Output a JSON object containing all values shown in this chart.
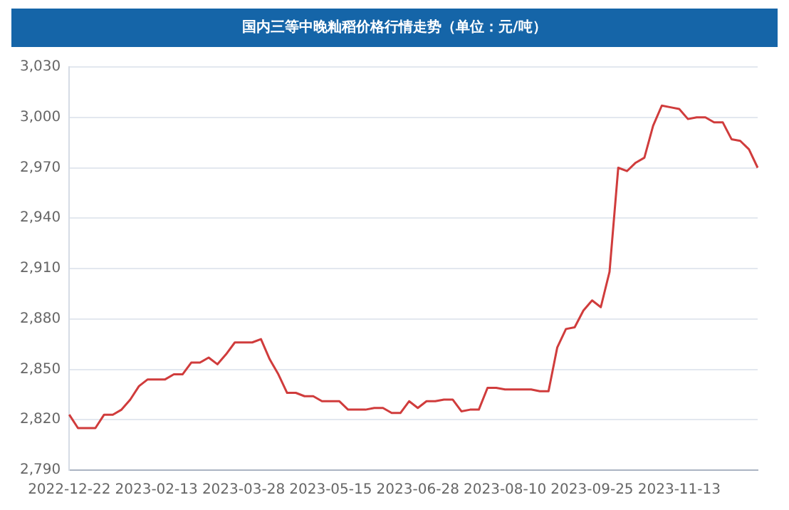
{
  "chart_data": {
    "type": "line",
    "title": "国内三等中晚籼稻价格行情走势（单位：元/吨）",
    "categories": [
      "2022-12-22",
      null,
      null,
      null,
      null,
      null,
      null,
      null,
      null,
      null,
      "2023-02-13",
      null,
      null,
      null,
      null,
      null,
      null,
      null,
      null,
      null,
      "2023-03-28",
      null,
      null,
      null,
      null,
      null,
      null,
      null,
      null,
      null,
      "2023-05-15",
      null,
      null,
      null,
      null,
      null,
      null,
      null,
      null,
      null,
      "2023-06-28",
      null,
      null,
      null,
      null,
      null,
      null,
      null,
      null,
      null,
      "2023-08-10",
      null,
      null,
      null,
      null,
      null,
      null,
      null,
      null,
      null,
      "2023-09-25",
      null,
      null,
      null,
      null,
      null,
      null,
      null,
      null,
      null,
      "2023-11-13",
      null,
      null,
      null,
      null,
      null,
      null,
      null,
      null,
      null
    ],
    "series": [
      {
        "color": "#d03c3c",
        "values": [
          2823,
          2815,
          2815,
          2815,
          2823,
          2823,
          2826,
          2832,
          2840,
          2844,
          2844,
          2844,
          2847,
          2847,
          2854,
          2854,
          2857,
          2853,
          2859,
          2866,
          2866,
          2866,
          2868,
          2856,
          2847,
          2836,
          2836,
          2834,
          2834,
          2831,
          2831,
          2831,
          2826,
          2826,
          2826,
          2827,
          2827,
          2824,
          2824,
          2831,
          2827,
          2831,
          2831,
          2832,
          2832,
          2825,
          2826,
          2826,
          2839,
          2839,
          2838,
          2838,
          2838,
          2838,
          2837,
          2837,
          2863,
          2874,
          2875,
          2885,
          2891,
          2887,
          2908,
          2970,
          2968,
          2973,
          2976,
          2995,
          3007,
          3006,
          3005,
          2999,
          3000,
          3000,
          2997,
          2997,
          2987,
          2986,
          2981,
          2970
        ]
      }
    ],
    "ylim": [
      2790,
      3030
    ],
    "yticks": [
      {
        "value": 2790,
        "label": "2,790"
      },
      {
        "value": 2820,
        "label": "2,820"
      },
      {
        "value": 2850,
        "label": "2,850"
      },
      {
        "value": 2880,
        "label": "2,880"
      },
      {
        "value": 2910,
        "label": "2,910"
      },
      {
        "value": 2940,
        "label": "2,940"
      },
      {
        "value": 2970,
        "label": "2,970"
      },
      {
        "value": 3000,
        "label": "3,000"
      },
      {
        "value": 3030,
        "label": "3,030"
      }
    ],
    "grid": "y",
    "line_style": "solid",
    "legend": false
  }
}
